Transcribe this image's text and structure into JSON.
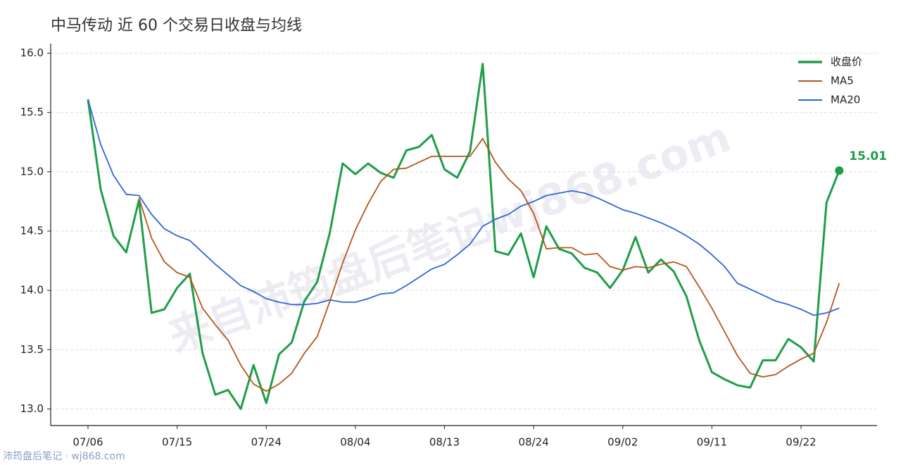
{
  "chart_data": {
    "type": "line",
    "title": "中马传动 近 60 个交易日收盘与均线",
    "watermark": "来自沛筠盘后笔记wj868.com",
    "footer": "沛筠盘后笔记 · wj868.com",
    "categories": [
      "07/06",
      null,
      null,
      null,
      null,
      null,
      null,
      "07/15",
      null,
      null,
      null,
      null,
      null,
      null,
      "07/24",
      null,
      null,
      null,
      null,
      null,
      null,
      "08/04",
      null,
      null,
      null,
      null,
      null,
      null,
      "08/13",
      null,
      null,
      null,
      null,
      null,
      null,
      "08/24",
      null,
      null,
      null,
      null,
      null,
      null,
      "09/02",
      null,
      null,
      null,
      null,
      null,
      null,
      "09/11",
      null,
      null,
      null,
      null,
      null,
      null,
      "09/22",
      null,
      null,
      null
    ],
    "series": [
      {
        "name": "收盘价",
        "color": "#1f9e4a",
        "values": [
          15.61,
          14.85,
          14.46,
          14.32,
          14.76,
          13.81,
          13.84,
          14.02,
          14.14,
          13.47,
          13.12,
          13.16,
          13.0,
          13.37,
          13.05,
          13.46,
          13.56,
          13.91,
          14.07,
          14.49,
          15.07,
          14.98,
          15.07,
          14.99,
          14.95,
          15.18,
          15.21,
          15.31,
          15.02,
          14.95,
          15.17,
          15.91,
          14.33,
          14.3,
          14.48,
          14.11,
          14.54,
          14.35,
          14.31,
          14.19,
          14.15,
          14.02,
          14.17,
          14.45,
          14.15,
          14.26,
          14.16,
          13.95,
          13.58,
          13.31,
          13.25,
          13.2,
          13.18,
          13.41,
          13.41,
          13.59,
          13.52,
          13.4,
          14.74,
          15.01
        ]
      },
      {
        "name": "MA5",
        "color": "#b5561a",
        "values": [
          null,
          null,
          null,
          null,
          14.78,
          14.44,
          14.24,
          14.15,
          14.11,
          13.85,
          13.71,
          13.58,
          13.37,
          13.21,
          13.15,
          13.21,
          13.3,
          13.47,
          13.61,
          13.91,
          14.23,
          14.51,
          14.73,
          14.92,
          15.02,
          15.03,
          15.08,
          15.13,
          15.13,
          15.13,
          15.13,
          15.28,
          15.08,
          14.94,
          14.84,
          14.65,
          14.35,
          14.36,
          14.36,
          14.3,
          14.31,
          14.2,
          14.17,
          14.2,
          14.19,
          14.22,
          14.24,
          14.2,
          14.03,
          13.85,
          13.65,
          13.45,
          13.3,
          13.27,
          13.29,
          13.36,
          13.42,
          13.47,
          13.73,
          14.06
        ]
      },
      {
        "name": "MA20",
        "color": "#2f66d6",
        "values": [
          15.61,
          15.23,
          14.97,
          14.81,
          14.8,
          14.64,
          14.52,
          14.46,
          14.42,
          14.32,
          14.22,
          14.13,
          14.04,
          13.99,
          13.93,
          13.9,
          13.88,
          13.88,
          13.89,
          13.92,
          13.9,
          13.9,
          13.93,
          13.97,
          13.98,
          14.04,
          14.11,
          14.18,
          14.22,
          14.3,
          14.39,
          14.54,
          14.6,
          14.64,
          14.71,
          14.75,
          14.8,
          14.82,
          14.84,
          14.82,
          14.78,
          14.73,
          14.68,
          14.65,
          14.61,
          14.57,
          14.52,
          14.46,
          14.39,
          14.3,
          14.2,
          14.06,
          14.01,
          13.96,
          13.91,
          13.88,
          13.84,
          13.79,
          13.81,
          13.85
        ]
      }
    ],
    "ylim": [
      12.86,
      16.08
    ],
    "yticks": [
      {
        "value": 13,
        "label": "13.0"
      },
      13.5,
      {
        "value": 14,
        "label": "14.0"
      },
      14.5,
      {
        "value": 15,
        "label": "15.0"
      },
      15.5,
      {
        "value": 16,
        "label": "16.0"
      }
    ],
    "grid": true,
    "legend": "upper-right"
  }
}
